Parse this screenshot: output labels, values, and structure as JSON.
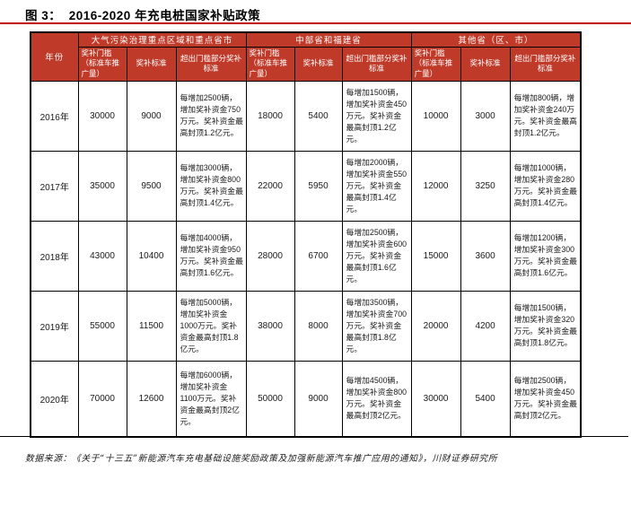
{
  "figure": {
    "title": "图 3：  2016-2020 年充电桩国家补贴政策",
    "source_note": "数据来源：《关于“十三五”新能源汽车充电基础设施奖励政策及加强新能源汽车推广应用的通知》，川财证券研究所"
  },
  "colors": {
    "header_bg": "#bf3a29",
    "header_text": "#ffffff",
    "title_underline": "#c00000",
    "table_border": "#000000"
  },
  "table": {
    "year_header": "年份",
    "groups": [
      "大气污染治理重点区域和重点省市",
      "中部省和福建省",
      "其他省（区、市）"
    ],
    "sub_headers": [
      "奖补门槛（标准车推广量）",
      "奖补标准",
      "超出门槛部分奖补标准"
    ],
    "rows": [
      {
        "year": "2016年",
        "cells": [
          "30000",
          "9000",
          "每增加2500辆，增加奖补资金750万元。奖补资金最高封顶1.2亿元。",
          "18000",
          "5400",
          "每增加1500辆，增加奖补资金450万元。奖补资金最高封顶1.2亿元。",
          "10000",
          "3000",
          "每增加800辆，增加奖补资金240万元。奖补资金最高封顶1.2亿元。"
        ]
      },
      {
        "year": "2017年",
        "cells": [
          "35000",
          "9500",
          "每增加3000辆，增加奖补资金800万元。奖补资金最高封顶1.4亿元。",
          "22000",
          "5950",
          "每增加2000辆，增加奖补资金550万元。奖补资金最高封顶1.4亿元。",
          "12000",
          "3250",
          "每增加1000辆，增加奖补资金280万元。奖补资金最高封顶1.4亿元。"
        ]
      },
      {
        "year": "2018年",
        "cells": [
          "43000",
          "10400",
          "每增加4000辆，增加奖补资金950万元。奖补资金最高封顶1.6亿元。",
          "28000",
          "6700",
          "每增加2500辆，增加奖补资金600万元。奖补资金最高封顶1.6亿元。",
          "15000",
          "3600",
          "每增加1200辆，增加奖补资金300万元。奖补资金最高封顶1.6亿元。"
        ]
      },
      {
        "year": "2019年",
        "cells": [
          "55000",
          "11500",
          "每增加5000辆，增加奖补资金1000万元。奖补资金最高封顶1.8亿元。",
          "38000",
          "8000",
          "每增加3500辆，增加奖补资金700万元。奖补资金最高封顶1.8亿元。",
          "20000",
          "4200",
          "每增加1500辆，增加奖补资金320万元。奖补资金最高封顶1.8亿元。"
        ]
      },
      {
        "year": "2020年",
        "cells": [
          "70000",
          "12600",
          "每增加6000辆，增加奖补资金1100万元。奖补资金最高封顶2亿元。",
          "50000",
          "9000",
          "每增加4500辆，增加奖补资金800万元。奖补资金最高封顶2亿元。",
          "30000",
          "5400",
          "每增加2500辆，增加奖补资金450万元。奖补资金最高封顶2亿元。"
        ]
      }
    ]
  }
}
